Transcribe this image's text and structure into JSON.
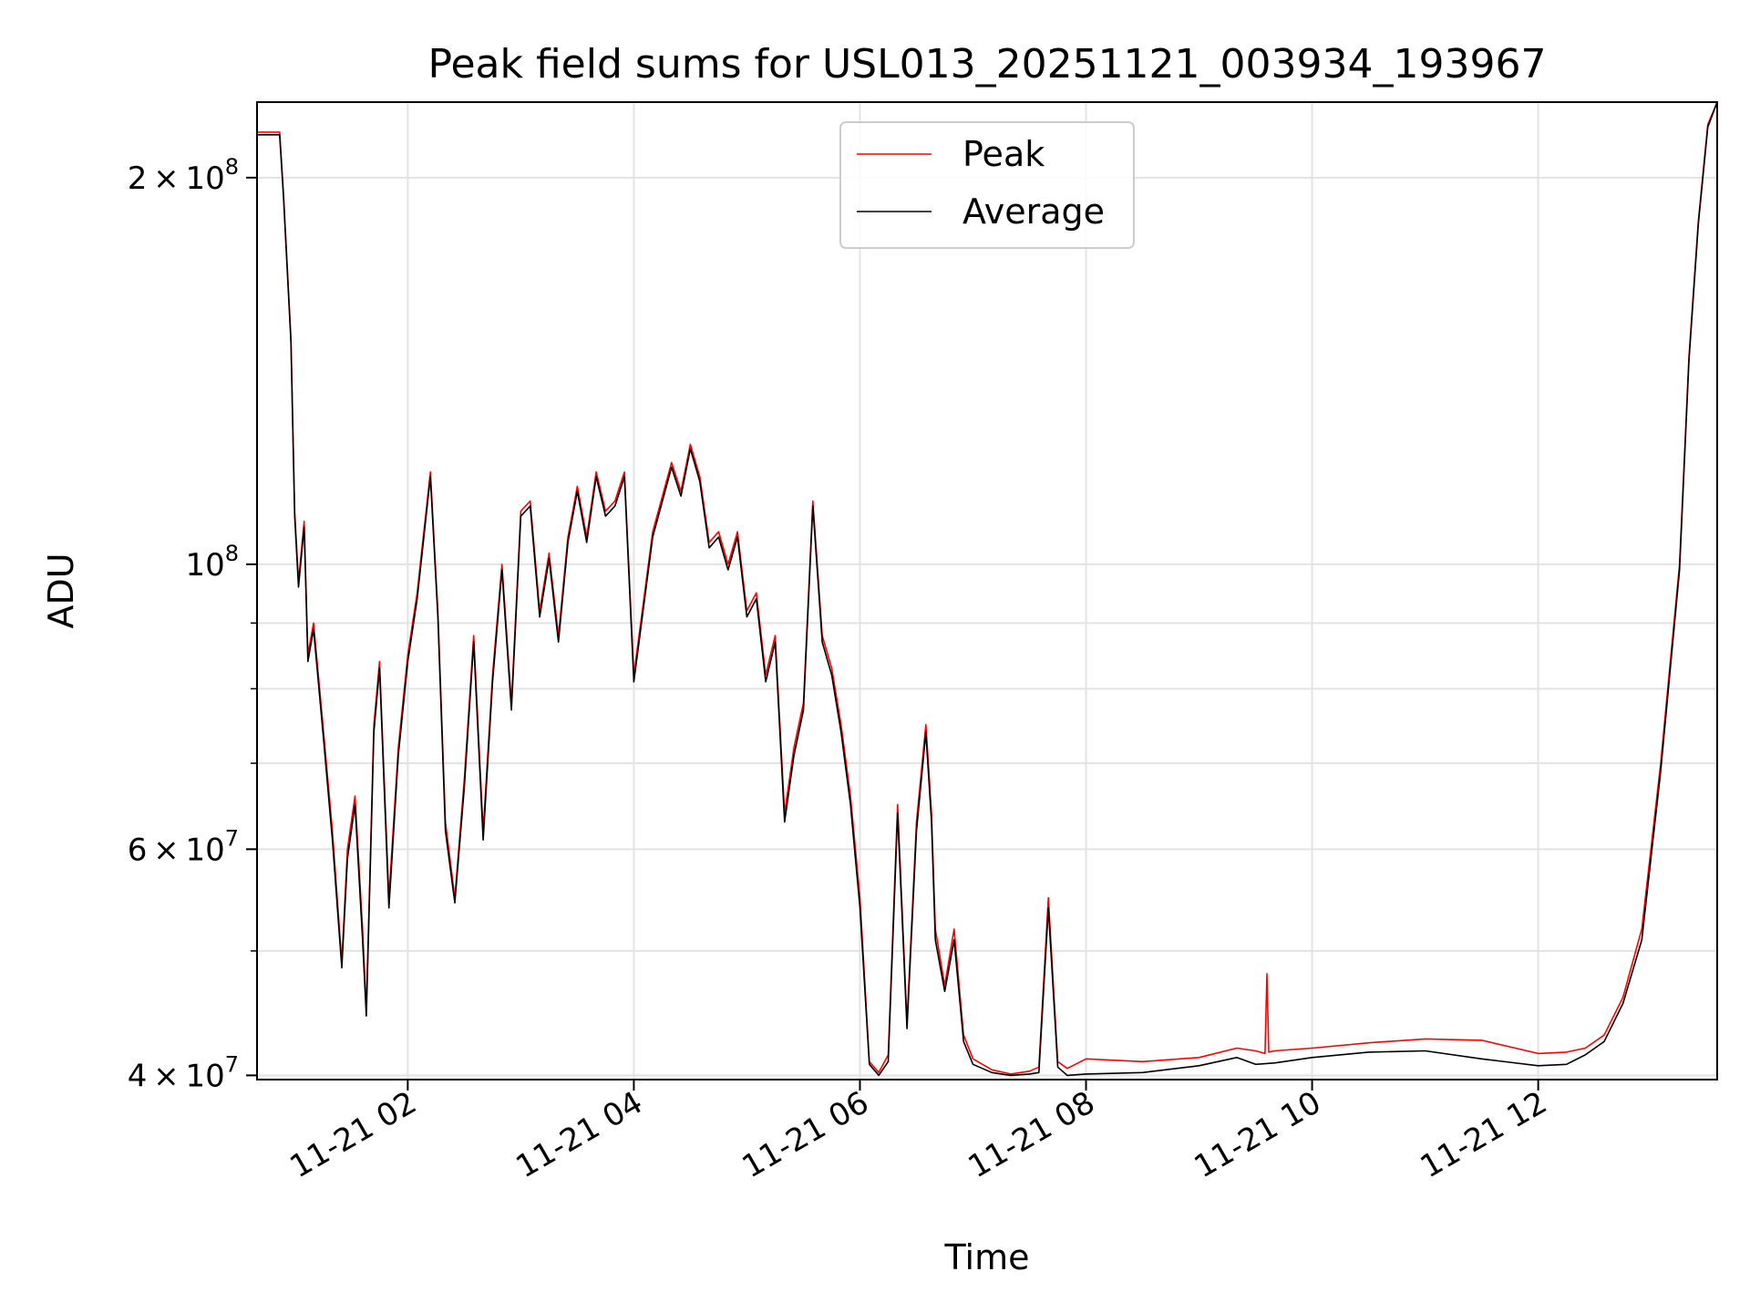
{
  "chart_data": {
    "type": "line",
    "title": "Peak field sums for USL013_20251121_003934_193967",
    "xlabel": "Time",
    "ylabel": "ADU",
    "yscale": "log",
    "ylim": [
      39700000,
      229000000
    ],
    "xlim": [
      "2025-11-21 00:40",
      "2025-11-21 13:35"
    ],
    "grid": true,
    "legend_position": "top-center",
    "x_ticks": [
      {
        "t": "2025-11-21 02:00",
        "label": "11-21 02"
      },
      {
        "t": "2025-11-21 04:00",
        "label": "11-21 04"
      },
      {
        "t": "2025-11-21 06:00",
        "label": "11-21 06"
      },
      {
        "t": "2025-11-21 08:00",
        "label": "11-21 08"
      },
      {
        "t": "2025-11-21 10:00",
        "label": "11-21 10"
      },
      {
        "t": "2025-11-21 12:00",
        "label": "11-21 12"
      }
    ],
    "y_ticks": [
      {
        "value": 40000000,
        "base": "4 × 10",
        "exp": "7"
      },
      {
        "value": 60000000,
        "base": "6 × 10",
        "exp": "7"
      },
      {
        "value": 100000000,
        "base": "10",
        "exp": "8"
      },
      {
        "value": 200000000,
        "base": "2 × 10",
        "exp": "8"
      }
    ],
    "y_minor_ticks": [
      50000000,
      70000000,
      80000000,
      90000000
    ],
    "series": [
      {
        "name": "Peak",
        "color": "#ff0000",
        "x": [
          "2025-11-21 00:40",
          "2025-11-21 00:52",
          "2025-11-21 00:54",
          "2025-11-21 00:58",
          "2025-11-21 01:00",
          "2025-11-21 01:02",
          "2025-11-21 01:05",
          "2025-11-21 01:07",
          "2025-11-21 01:10",
          "2025-11-21 01:15",
          "2025-11-21 01:20",
          "2025-11-21 01:25",
          "2025-11-21 01:28",
          "2025-11-21 01:32",
          "2025-11-21 01:36",
          "2025-11-21 01:38",
          "2025-11-21 01:42",
          "2025-11-21 01:45",
          "2025-11-21 01:50",
          "2025-11-21 01:55",
          "2025-11-21 02:00",
          "2025-11-21 02:05",
          "2025-11-21 02:12",
          "2025-11-21 02:16",
          "2025-11-21 02:20",
          "2025-11-21 02:25",
          "2025-11-21 02:30",
          "2025-11-21 02:35",
          "2025-11-21 02:40",
          "2025-11-21 02:45",
          "2025-11-21 02:50",
          "2025-11-21 02:55",
          "2025-11-21 03:00",
          "2025-11-21 03:05",
          "2025-11-21 03:10",
          "2025-11-21 03:15",
          "2025-11-21 03:20",
          "2025-11-21 03:25",
          "2025-11-21 03:30",
          "2025-11-21 03:35",
          "2025-11-21 03:40",
          "2025-11-21 03:45",
          "2025-11-21 03:50",
          "2025-11-21 03:55",
          "2025-11-21 04:00",
          "2025-11-21 04:10",
          "2025-11-21 04:20",
          "2025-11-21 04:25",
          "2025-11-21 04:30",
          "2025-11-21 04:35",
          "2025-11-21 04:40",
          "2025-11-21 04:45",
          "2025-11-21 04:50",
          "2025-11-21 04:55",
          "2025-11-21 05:00",
          "2025-11-21 05:05",
          "2025-11-21 05:10",
          "2025-11-21 05:15",
          "2025-11-21 05:20",
          "2025-11-21 05:25",
          "2025-11-21 05:30",
          "2025-11-21 05:35",
          "2025-11-21 05:40",
          "2025-11-21 05:45",
          "2025-11-21 05:50",
          "2025-11-21 05:55",
          "2025-11-21 06:00",
          "2025-11-21 06:05",
          "2025-11-21 06:10",
          "2025-11-21 06:15",
          "2025-11-21 06:20",
          "2025-11-21 06:25",
          "2025-11-21 06:30",
          "2025-11-21 06:35",
          "2025-11-21 06:38",
          "2025-11-21 06:40",
          "2025-11-21 06:45",
          "2025-11-21 06:50",
          "2025-11-21 06:55",
          "2025-11-21 07:00",
          "2025-11-21 07:10",
          "2025-11-21 07:20",
          "2025-11-21 07:30",
          "2025-11-21 07:35",
          "2025-11-21 07:40",
          "2025-11-21 07:45",
          "2025-11-21 07:50",
          "2025-11-21 08:00",
          "2025-11-21 08:30",
          "2025-11-21 09:00",
          "2025-11-21 09:20",
          "2025-11-21 09:30",
          "2025-11-21 09:35",
          "2025-11-21 09:36",
          "2025-11-21 09:37",
          "2025-11-21 09:40",
          "2025-11-21 10:00",
          "2025-11-21 10:30",
          "2025-11-21 11:00",
          "2025-11-21 11:30",
          "2025-11-21 12:00",
          "2025-11-21 12:15",
          "2025-11-21 12:25",
          "2025-11-21 12:35",
          "2025-11-21 12:45",
          "2025-11-21 12:55",
          "2025-11-21 13:05",
          "2025-11-21 13:15",
          "2025-11-21 13:20",
          "2025-11-21 13:25",
          "2025-11-21 13:30",
          "2025-11-21 13:35"
        ],
        "y": [
          217000000,
          217000000,
          195000000,
          150000000,
          110000000,
          97000000,
          108000000,
          85000000,
          90000000,
          75000000,
          62000000,
          49000000,
          60000000,
          66000000,
          52000000,
          45000000,
          75000000,
          84000000,
          55000000,
          72000000,
          85000000,
          95000000,
          118000000,
          92000000,
          63000000,
          55000000,
          68000000,
          88000000,
          62000000,
          82000000,
          100000000,
          78000000,
          110000000,
          112000000,
          92000000,
          102000000,
          88000000,
          105000000,
          115000000,
          105000000,
          118000000,
          110000000,
          112000000,
          118000000,
          82000000,
          106000000,
          120000000,
          114000000,
          124000000,
          117000000,
          104000000,
          106000000,
          100000000,
          106000000,
          92000000,
          95000000,
          82000000,
          88000000,
          64000000,
          72000000,
          78000000,
          112000000,
          88000000,
          83000000,
          75000000,
          66000000,
          55000000,
          41000000,
          40200000,
          41500000,
          65000000,
          44000000,
          63000000,
          75000000,
          64000000,
          52000000,
          47000000,
          52000000,
          43000000,
          41200000,
          40400000,
          40100000,
          40300000,
          40600000,
          55000000,
          41000000,
          40500000,
          41200000,
          41000000,
          41300000,
          42000000,
          41800000,
          41600000,
          48000000,
          41700000,
          41800000,
          42000000,
          42400000,
          42700000,
          42600000,
          41600000,
          41700000,
          42000000,
          43000000,
          46000000,
          52000000,
          70000000,
          100000000,
          145000000,
          185000000,
          220000000,
          229000000
        ]
      },
      {
        "name": "Average",
        "color": "#000000",
        "x": [
          "2025-11-21 00:40",
          "2025-11-21 00:52",
          "2025-11-21 00:54",
          "2025-11-21 00:58",
          "2025-11-21 01:00",
          "2025-11-21 01:02",
          "2025-11-21 01:05",
          "2025-11-21 01:07",
          "2025-11-21 01:10",
          "2025-11-21 01:15",
          "2025-11-21 01:20",
          "2025-11-21 01:25",
          "2025-11-21 01:28",
          "2025-11-21 01:32",
          "2025-11-21 01:36",
          "2025-11-21 01:38",
          "2025-11-21 01:42",
          "2025-11-21 01:45",
          "2025-11-21 01:50",
          "2025-11-21 01:55",
          "2025-11-21 02:00",
          "2025-11-21 02:05",
          "2025-11-21 02:12",
          "2025-11-21 02:16",
          "2025-11-21 02:20",
          "2025-11-21 02:25",
          "2025-11-21 02:30",
          "2025-11-21 02:35",
          "2025-11-21 02:40",
          "2025-11-21 02:45",
          "2025-11-21 02:50",
          "2025-11-21 02:55",
          "2025-11-21 03:00",
          "2025-11-21 03:05",
          "2025-11-21 03:10",
          "2025-11-21 03:15",
          "2025-11-21 03:20",
          "2025-11-21 03:25",
          "2025-11-21 03:30",
          "2025-11-21 03:35",
          "2025-11-21 03:40",
          "2025-11-21 03:45",
          "2025-11-21 03:50",
          "2025-11-21 03:55",
          "2025-11-21 04:00",
          "2025-11-21 04:10",
          "2025-11-21 04:20",
          "2025-11-21 04:25",
          "2025-11-21 04:30",
          "2025-11-21 04:35",
          "2025-11-21 04:40",
          "2025-11-21 04:45",
          "2025-11-21 04:50",
          "2025-11-21 04:55",
          "2025-11-21 05:00",
          "2025-11-21 05:05",
          "2025-11-21 05:10",
          "2025-11-21 05:15",
          "2025-11-21 05:20",
          "2025-11-21 05:25",
          "2025-11-21 05:30",
          "2025-11-21 05:35",
          "2025-11-21 05:40",
          "2025-11-21 05:45",
          "2025-11-21 05:50",
          "2025-11-21 05:55",
          "2025-11-21 06:00",
          "2025-11-21 06:05",
          "2025-11-21 06:10",
          "2025-11-21 06:15",
          "2025-11-21 06:20",
          "2025-11-21 06:25",
          "2025-11-21 06:30",
          "2025-11-21 06:35",
          "2025-11-21 06:38",
          "2025-11-21 06:40",
          "2025-11-21 06:45",
          "2025-11-21 06:50",
          "2025-11-21 06:55",
          "2025-11-21 07:00",
          "2025-11-21 07:10",
          "2025-11-21 07:20",
          "2025-11-21 07:30",
          "2025-11-21 07:35",
          "2025-11-21 07:40",
          "2025-11-21 07:45",
          "2025-11-21 07:50",
          "2025-11-21 08:00",
          "2025-11-21 08:30",
          "2025-11-21 09:00",
          "2025-11-21 09:20",
          "2025-11-21 09:30",
          "2025-11-21 09:40",
          "2025-11-21 10:00",
          "2025-11-21 10:30",
          "2025-11-21 11:00",
          "2025-11-21 11:30",
          "2025-11-21 12:00",
          "2025-11-21 12:15",
          "2025-11-21 12:25",
          "2025-11-21 12:35",
          "2025-11-21 12:45",
          "2025-11-21 12:55",
          "2025-11-21 13:05",
          "2025-11-21 13:15",
          "2025-11-21 13:20",
          "2025-11-21 13:25",
          "2025-11-21 13:30",
          "2025-11-21 13:35"
        ],
        "y": [
          216000000,
          216000000,
          194000000,
          149000000,
          109000000,
          96000000,
          107000000,
          84000000,
          89000000,
          74000000,
          61000000,
          48500000,
          59000000,
          65000000,
          51000000,
          44500000,
          74000000,
          83000000,
          54000000,
          71000000,
          84000000,
          94000000,
          117000000,
          91000000,
          62000000,
          54500000,
          67000000,
          87000000,
          61000000,
          81000000,
          99000000,
          77000000,
          109000000,
          111000000,
          91000000,
          101000000,
          87000000,
          104000000,
          114000000,
          104000000,
          117000000,
          109000000,
          111000000,
          117000000,
          81000000,
          105000000,
          119000000,
          113000000,
          123000000,
          116000000,
          103000000,
          105000000,
          99000000,
          105000000,
          91000000,
          94000000,
          81000000,
          87000000,
          63000000,
          71000000,
          77000000,
          111000000,
          87000000,
          82000000,
          74000000,
          65000000,
          54000000,
          40800000,
          40000000,
          41000000,
          64000000,
          43500000,
          62000000,
          74000000,
          63000000,
          51000000,
          46500000,
          51000000,
          42500000,
          40800000,
          40200000,
          40000000,
          40100000,
          40200000,
          54000000,
          40600000,
          40000000,
          40100000,
          40200000,
          40700000,
          41300000,
          40800000,
          40900000,
          41300000,
          41700000,
          41800000,
          41200000,
          40700000,
          40800000,
          41500000,
          42500000,
          45500000,
          51000000,
          69000000,
          99000000,
          144000000,
          184000000,
          219000000,
          229000000
        ]
      }
    ]
  }
}
